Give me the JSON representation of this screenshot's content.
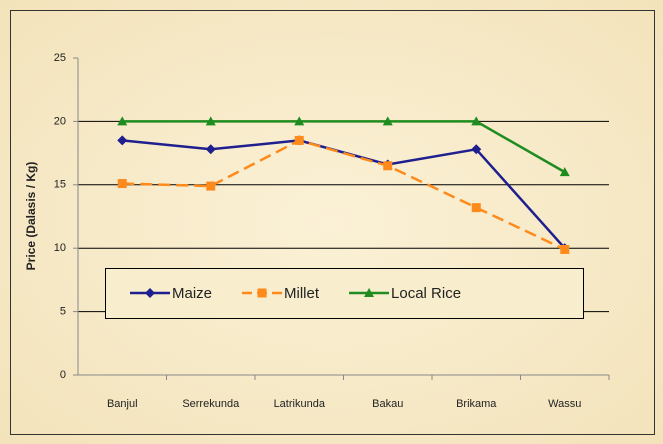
{
  "chart_data": {
    "type": "line",
    "y_label": "Price (Dalasis / Kg)",
    "categories": [
      "Banjul",
      "Serrekunda",
      "Latrikunda",
      "Bakau",
      "Brikama",
      "Wassu"
    ],
    "series": [
      {
        "name": "Maize",
        "color": "#1f1f8f",
        "marker": "diamond",
        "dash": false,
        "values": [
          18.5,
          17.8,
          18.5,
          16.6,
          17.8,
          10.0
        ]
      },
      {
        "name": "Millet",
        "color": "#ff8a1c",
        "marker": "square",
        "dash": true,
        "values": [
          15.1,
          14.9,
          18.5,
          16.5,
          13.2,
          9.9
        ]
      },
      {
        "name": "Local Rice",
        "color": "#1f8c1f",
        "marker": "triangle",
        "dash": false,
        "values": [
          20,
          20,
          20,
          20,
          20,
          16
        ]
      }
    ],
    "ylim": [
      0,
      25
    ],
    "yticks": [
      0,
      5,
      10,
      15,
      20,
      25
    ],
    "grid": true,
    "legend": "inside"
  }
}
